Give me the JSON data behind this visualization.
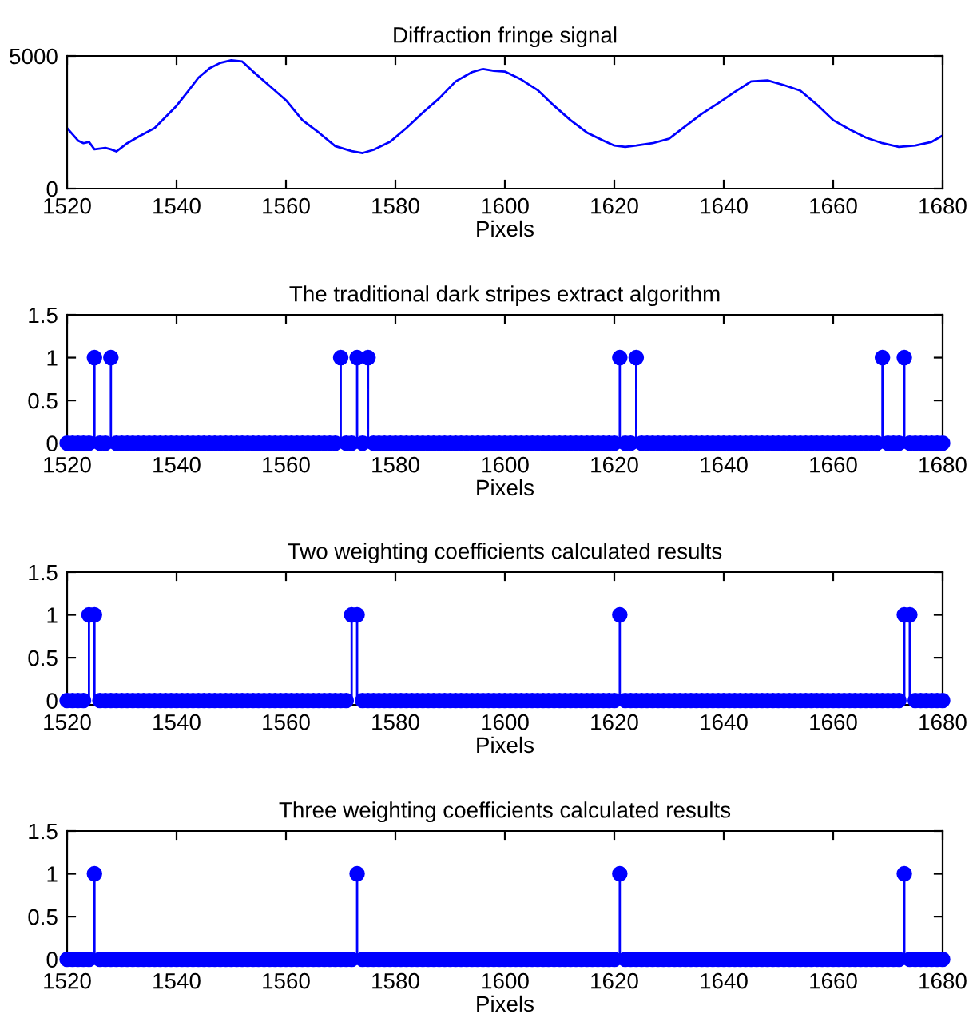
{
  "chart_data": [
    {
      "type": "line",
      "title": "Diffraction fringe signal",
      "xlabel": "Pixels",
      "xlim": [
        1520,
        1680
      ],
      "xticks": [
        1520,
        1540,
        1560,
        1580,
        1600,
        1620,
        1640,
        1660,
        1680
      ],
      "ylim": [
        0,
        5000
      ],
      "yticks": [
        0,
        5000
      ],
      "grid": false,
      "series": [
        {
          "color": "#0000ff",
          "x": [
            1520,
            1522,
            1523,
            1524,
            1525,
            1527,
            1528,
            1529,
            1531,
            1533,
            1536,
            1540,
            1542,
            1544,
            1546,
            1548,
            1550,
            1552,
            1554,
            1557,
            1560,
            1563,
            1566,
            1569,
            1572,
            1574,
            1576,
            1579,
            1582,
            1585,
            1588,
            1591,
            1594,
            1596,
            1598,
            1600,
            1603,
            1606,
            1609,
            1612,
            1615,
            1618,
            1620,
            1622,
            1624,
            1627,
            1630,
            1633,
            1636,
            1639,
            1642,
            1645,
            1648,
            1651,
            1654,
            1657,
            1660,
            1663,
            1666,
            1669,
            1672,
            1675,
            1678,
            1680
          ],
          "values": [
            2280,
            1810,
            1710,
            1760,
            1480,
            1530,
            1480,
            1400,
            1710,
            1950,
            2280,
            3120,
            3640,
            4180,
            4530,
            4740,
            4840,
            4790,
            4410,
            3870,
            3330,
            2580,
            2110,
            1600,
            1410,
            1340,
            1460,
            1760,
            2280,
            2860,
            3400,
            4040,
            4390,
            4510,
            4440,
            4410,
            4110,
            3710,
            3120,
            2580,
            2110,
            1810,
            1620,
            1570,
            1620,
            1710,
            1880,
            2350,
            2820,
            3220,
            3640,
            4040,
            4080,
            3900,
            3690,
            3170,
            2580,
            2230,
            1920,
            1710,
            1570,
            1620,
            1760,
            2000
          ]
        }
      ]
    },
    {
      "type": "lollipop",
      "title": "The traditional dark stripes extract algorithm",
      "xlabel": "Pixels",
      "xlim": [
        1520,
        1680
      ],
      "xticks": [
        1520,
        1540,
        1560,
        1580,
        1600,
        1620,
        1640,
        1660,
        1680
      ],
      "ylim": [
        -0.05,
        1.5
      ],
      "yticks": [
        0,
        0.5,
        1,
        1.5
      ],
      "grid": false,
      "marker": "circle",
      "x": [
        1520,
        1521,
        1522,
        1523,
        1524,
        1525,
        1526,
        1527,
        1528,
        1529,
        1530,
        1531,
        1532,
        1533,
        1534,
        1535,
        1536,
        1537,
        1538,
        1539,
        1540,
        1541,
        1542,
        1543,
        1544,
        1545,
        1546,
        1547,
        1548,
        1549,
        1550,
        1551,
        1552,
        1553,
        1554,
        1555,
        1556,
        1557,
        1558,
        1559,
        1560,
        1561,
        1562,
        1563,
        1564,
        1565,
        1566,
        1567,
        1568,
        1569,
        1570,
        1571,
        1572,
        1573,
        1574,
        1575,
        1576,
        1577,
        1578,
        1579,
        1580,
        1581,
        1582,
        1583,
        1584,
        1585,
        1586,
        1587,
        1588,
        1589,
        1590,
        1591,
        1592,
        1593,
        1594,
        1595,
        1596,
        1597,
        1598,
        1599,
        1600,
        1601,
        1602,
        1603,
        1604,
        1605,
        1606,
        1607,
        1608,
        1609,
        1610,
        1611,
        1612,
        1613,
        1614,
        1615,
        1616,
        1617,
        1618,
        1619,
        1620,
        1621,
        1622,
        1623,
        1624,
        1625,
        1626,
        1627,
        1628,
        1629,
        1630,
        1631,
        1632,
        1633,
        1634,
        1635,
        1636,
        1637,
        1638,
        1639,
        1640,
        1641,
        1642,
        1643,
        1644,
        1645,
        1646,
        1647,
        1648,
        1649,
        1650,
        1651,
        1652,
        1653,
        1654,
        1655,
        1656,
        1657,
        1658,
        1659,
        1660,
        1661,
        1662,
        1663,
        1664,
        1665,
        1666,
        1667,
        1668,
        1669,
        1670,
        1671,
        1672,
        1673,
        1674,
        1675,
        1676,
        1677,
        1678,
        1679,
        1680
      ],
      "series": [
        {
          "color": "#0000ff",
          "values": [
            0,
            0,
            0,
            0,
            0,
            1,
            0,
            0,
            1,
            0,
            0,
            0,
            0,
            0,
            0,
            0,
            0,
            0,
            0,
            0,
            0,
            0,
            0,
            0,
            0,
            0,
            0,
            0,
            0,
            0,
            0,
            0,
            0,
            0,
            0,
            0,
            0,
            0,
            0,
            0,
            0,
            0,
            0,
            0,
            0,
            0,
            0,
            0,
            0,
            0,
            1,
            0,
            0,
            1,
            0,
            1,
            0,
            0,
            0,
            0,
            0,
            0,
            0,
            0,
            0,
            0,
            0,
            0,
            0,
            0,
            0,
            0,
            0,
            0,
            0,
            0,
            0,
            0,
            0,
            0,
            0,
            0,
            0,
            0,
            0,
            0,
            0,
            0,
            0,
            0,
            0,
            0,
            0,
            0,
            0,
            0,
            0,
            0,
            0,
            0,
            0,
            1,
            0,
            0,
            1,
            0,
            0,
            0,
            0,
            0,
            0,
            0,
            0,
            0,
            0,
            0,
            0,
            0,
            0,
            0,
            0,
            0,
            0,
            0,
            0,
            0,
            0,
            0,
            0,
            0,
            0,
            0,
            0,
            0,
            0,
            0,
            0,
            0,
            0,
            0,
            0,
            0,
            0,
            0,
            0,
            0,
            0,
            0,
            0,
            1,
            0,
            0,
            0,
            1,
            0,
            0,
            0,
            0,
            0,
            0,
            0
          ]
        }
      ]
    },
    {
      "type": "lollipop",
      "title": "Two weighting coefficients calculated results",
      "xlabel": "Pixels",
      "xlim": [
        1520,
        1680
      ],
      "xticks": [
        1520,
        1540,
        1560,
        1580,
        1600,
        1620,
        1640,
        1660,
        1680
      ],
      "ylim": [
        -0.05,
        1.5
      ],
      "yticks": [
        0,
        0.5,
        1,
        1.5
      ],
      "grid": false,
      "marker": "circle",
      "x": [
        1520,
        1521,
        1522,
        1523,
        1524,
        1525,
        1526,
        1527,
        1528,
        1529,
        1530,
        1531,
        1532,
        1533,
        1534,
        1535,
        1536,
        1537,
        1538,
        1539,
        1540,
        1541,
        1542,
        1543,
        1544,
        1545,
        1546,
        1547,
        1548,
        1549,
        1550,
        1551,
        1552,
        1553,
        1554,
        1555,
        1556,
        1557,
        1558,
        1559,
        1560,
        1561,
        1562,
        1563,
        1564,
        1565,
        1566,
        1567,
        1568,
        1569,
        1570,
        1571,
        1572,
        1573,
        1574,
        1575,
        1576,
        1577,
        1578,
        1579,
        1580,
        1581,
        1582,
        1583,
        1584,
        1585,
        1586,
        1587,
        1588,
        1589,
        1590,
        1591,
        1592,
        1593,
        1594,
        1595,
        1596,
        1597,
        1598,
        1599,
        1600,
        1601,
        1602,
        1603,
        1604,
        1605,
        1606,
        1607,
        1608,
        1609,
        1610,
        1611,
        1612,
        1613,
        1614,
        1615,
        1616,
        1617,
        1618,
        1619,
        1620,
        1621,
        1622,
        1623,
        1624,
        1625,
        1626,
        1627,
        1628,
        1629,
        1630,
        1631,
        1632,
        1633,
        1634,
        1635,
        1636,
        1637,
        1638,
        1639,
        1640,
        1641,
        1642,
        1643,
        1644,
        1645,
        1646,
        1647,
        1648,
        1649,
        1650,
        1651,
        1652,
        1653,
        1654,
        1655,
        1656,
        1657,
        1658,
        1659,
        1660,
        1661,
        1662,
        1663,
        1664,
        1665,
        1666,
        1667,
        1668,
        1669,
        1670,
        1671,
        1672,
        1673,
        1674,
        1675,
        1676,
        1677,
        1678,
        1679,
        1680
      ],
      "series": [
        {
          "color": "#0000ff",
          "values": [
            0,
            0,
            0,
            0,
            1,
            1,
            0,
            0,
            0,
            0,
            0,
            0,
            0,
            0,
            0,
            0,
            0,
            0,
            0,
            0,
            0,
            0,
            0,
            0,
            0,
            0,
            0,
            0,
            0,
            0,
            0,
            0,
            0,
            0,
            0,
            0,
            0,
            0,
            0,
            0,
            0,
            0,
            0,
            0,
            0,
            0,
            0,
            0,
            0,
            0,
            0,
            0,
            1,
            1,
            0,
            0,
            0,
            0,
            0,
            0,
            0,
            0,
            0,
            0,
            0,
            0,
            0,
            0,
            0,
            0,
            0,
            0,
            0,
            0,
            0,
            0,
            0,
            0,
            0,
            0,
            0,
            0,
            0,
            0,
            0,
            0,
            0,
            0,
            0,
            0,
            0,
            0,
            0,
            0,
            0,
            0,
            0,
            0,
            0,
            0,
            0,
            1,
            0,
            0,
            0,
            0,
            0,
            0,
            0,
            0,
            0,
            0,
            0,
            0,
            0,
            0,
            0,
            0,
            0,
            0,
            0,
            0,
            0,
            0,
            0,
            0,
            0,
            0,
            0,
            0,
            0,
            0,
            0,
            0,
            0,
            0,
            0,
            0,
            0,
            0,
            0,
            0,
            0,
            0,
            0,
            0,
            0,
            0,
            0,
            0,
            0,
            0,
            0,
            1,
            1,
            0,
            0,
            0,
            0,
            0,
            0
          ]
        }
      ]
    },
    {
      "type": "lollipop",
      "title": "Three weighting coefficients calculated results",
      "xlabel": "Pixels",
      "xlim": [
        1520,
        1680
      ],
      "xticks": [
        1520,
        1540,
        1560,
        1580,
        1600,
        1620,
        1640,
        1660,
        1680
      ],
      "ylim": [
        -0.05,
        1.5
      ],
      "yticks": [
        0,
        0.5,
        1,
        1.5
      ],
      "grid": false,
      "marker": "circle",
      "x": [
        1520,
        1521,
        1522,
        1523,
        1524,
        1525,
        1526,
        1527,
        1528,
        1529,
        1530,
        1531,
        1532,
        1533,
        1534,
        1535,
        1536,
        1537,
        1538,
        1539,
        1540,
        1541,
        1542,
        1543,
        1544,
        1545,
        1546,
        1547,
        1548,
        1549,
        1550,
        1551,
        1552,
        1553,
        1554,
        1555,
        1556,
        1557,
        1558,
        1559,
        1560,
        1561,
        1562,
        1563,
        1564,
        1565,
        1566,
        1567,
        1568,
        1569,
        1570,
        1571,
        1572,
        1573,
        1574,
        1575,
        1576,
        1577,
        1578,
        1579,
        1580,
        1581,
        1582,
        1583,
        1584,
        1585,
        1586,
        1587,
        1588,
        1589,
        1590,
        1591,
        1592,
        1593,
        1594,
        1595,
        1596,
        1597,
        1598,
        1599,
        1600,
        1601,
        1602,
        1603,
        1604,
        1605,
        1606,
        1607,
        1608,
        1609,
        1610,
        1611,
        1612,
        1613,
        1614,
        1615,
        1616,
        1617,
        1618,
        1619,
        1620,
        1621,
        1622,
        1623,
        1624,
        1625,
        1626,
        1627,
        1628,
        1629,
        1630,
        1631,
        1632,
        1633,
        1634,
        1635,
        1636,
        1637,
        1638,
        1639,
        1640,
        1641,
        1642,
        1643,
        1644,
        1645,
        1646,
        1647,
        1648,
        1649,
        1650,
        1651,
        1652,
        1653,
        1654,
        1655,
        1656,
        1657,
        1658,
        1659,
        1660,
        1661,
        1662,
        1663,
        1664,
        1665,
        1666,
        1667,
        1668,
        1669,
        1670,
        1671,
        1672,
        1673,
        1674,
        1675,
        1676,
        1677,
        1678,
        1679,
        1680
      ],
      "series": [
        {
          "color": "#0000ff",
          "values": [
            0,
            0,
            0,
            0,
            0,
            1,
            0,
            0,
            0,
            0,
            0,
            0,
            0,
            0,
            0,
            0,
            0,
            0,
            0,
            0,
            0,
            0,
            0,
            0,
            0,
            0,
            0,
            0,
            0,
            0,
            0,
            0,
            0,
            0,
            0,
            0,
            0,
            0,
            0,
            0,
            0,
            0,
            0,
            0,
            0,
            0,
            0,
            0,
            0,
            0,
            0,
            0,
            0,
            1,
            0,
            0,
            0,
            0,
            0,
            0,
            0,
            0,
            0,
            0,
            0,
            0,
            0,
            0,
            0,
            0,
            0,
            0,
            0,
            0,
            0,
            0,
            0,
            0,
            0,
            0,
            0,
            0,
            0,
            0,
            0,
            0,
            0,
            0,
            0,
            0,
            0,
            0,
            0,
            0,
            0,
            0,
            0,
            0,
            0,
            0,
            0,
            1,
            0,
            0,
            0,
            0,
            0,
            0,
            0,
            0,
            0,
            0,
            0,
            0,
            0,
            0,
            0,
            0,
            0,
            0,
            0,
            0,
            0,
            0,
            0,
            0,
            0,
            0,
            0,
            0,
            0,
            0,
            0,
            0,
            0,
            0,
            0,
            0,
            0,
            0,
            0,
            0,
            0,
            0,
            0,
            0,
            0,
            0,
            0,
            0,
            0,
            0,
            0,
            1,
            0,
            0,
            0,
            0,
            0,
            0,
            0
          ]
        }
      ]
    }
  ]
}
